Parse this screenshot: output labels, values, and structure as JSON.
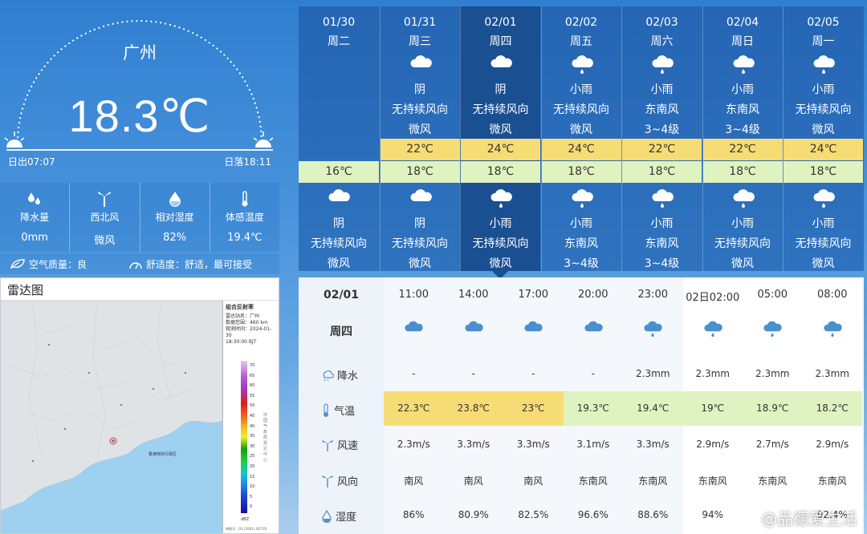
{
  "current": {
    "city": "广州",
    "temperature": "18.3℃",
    "sunrise": "日出07:07",
    "sunset": "日落18:11",
    "stats": [
      {
        "icon": "raindrops-icon",
        "label": "降水量",
        "value": "0mm"
      },
      {
        "icon": "wind-turbine-icon",
        "label": "西北风",
        "value": "微风"
      },
      {
        "icon": "humidity-drop-icon",
        "label": "相对湿度",
        "value": "82%"
      },
      {
        "icon": "thermometer-icon",
        "label": "体感温度",
        "value": "19.4℃"
      }
    ],
    "air_quality": "空气质量：良",
    "comfort": "舒适度：舒适，最可接受"
  },
  "radar": {
    "title": "雷达图",
    "legend_title": "组合反射率",
    "legend_lines": [
      "雷达站名：广州",
      "数据范围：460 km",
      "观测时间：2024-01-30",
      "18:30:00 BJT"
    ],
    "legend_scale": [
      "70",
      "65",
      "60",
      "55",
      "50",
      "45",
      "40",
      "35",
      "30",
      "25",
      "20",
      "15",
      "10",
      "5",
      "0"
    ],
    "legend_unit": "dBZ",
    "legend_side_text": "中国气象局雷达中心",
    "map_label": "审图号：GS (2002) 4073号"
  },
  "daily": [
    {
      "date": "01/30",
      "week": "周二",
      "day_icon": "",
      "day_cond": "",
      "day_wind": "",
      "day_level": "",
      "high": "",
      "low": "16℃",
      "night_icon": "cloudy-icon",
      "night_cond": "阴",
      "night_wind": "无持续风向",
      "night_level": "微风"
    },
    {
      "date": "01/31",
      "week": "周三",
      "day_icon": "cloudy-icon",
      "day_cond": "阴",
      "day_wind": "无持续风向",
      "day_level": "微风",
      "high": "22℃",
      "low": "18℃",
      "night_icon": "cloudy-icon",
      "night_cond": "阴",
      "night_wind": "无持续风向",
      "night_level": "微风"
    },
    {
      "date": "02/01",
      "week": "周四",
      "day_icon": "cloudy-icon",
      "day_cond": "阴",
      "day_wind": "无持续风向",
      "day_level": "微风",
      "high": "24℃",
      "low": "18℃",
      "night_icon": "light-rain-icon",
      "night_cond": "小雨",
      "night_wind": "无持续风向",
      "night_level": "微风"
    },
    {
      "date": "02/02",
      "week": "周五",
      "day_icon": "light-rain-icon",
      "day_cond": "小雨",
      "day_wind": "无持续风向",
      "day_level": "微风",
      "high": "24℃",
      "low": "18℃",
      "night_icon": "light-rain-icon",
      "night_cond": "小雨",
      "night_wind": "东南风",
      "night_level": "3~4级"
    },
    {
      "date": "02/03",
      "week": "周六",
      "day_icon": "light-rain-icon",
      "day_cond": "小雨",
      "day_wind": "东南风",
      "day_level": "3~4级",
      "high": "22℃",
      "low": "18℃",
      "night_icon": "light-rain-icon",
      "night_cond": "小雨",
      "night_wind": "东南风",
      "night_level": "3~4级"
    },
    {
      "date": "02/04",
      "week": "周日",
      "day_icon": "light-rain-icon",
      "day_cond": "小雨",
      "day_wind": "东南风",
      "day_level": "3~4级",
      "high": "22℃",
      "low": "18℃",
      "night_icon": "light-rain-icon",
      "night_cond": "小雨",
      "night_wind": "无持续风向",
      "night_level": "微风"
    },
    {
      "date": "02/05",
      "week": "周一",
      "day_icon": "light-rain-icon",
      "day_cond": "小雨",
      "day_wind": "无持续风向",
      "day_level": "微风",
      "high": "24℃",
      "low": "18℃",
      "night_icon": "light-rain-icon",
      "night_cond": "小雨",
      "night_wind": "无持续风向",
      "night_level": "微风"
    }
  ],
  "hourly": {
    "date": "02/01",
    "week": "周四",
    "row_labels": {
      "precip": "降水",
      "temp": "气温",
      "speed": "风速",
      "dir": "风向",
      "hum": "湿度"
    },
    "hours": [
      {
        "time": "11:00",
        "icon": "cloudy-icon",
        "precip": "-",
        "temp": "22.3℃",
        "speed": "2.3m/s",
        "dir": "南风",
        "hum": "86%"
      },
      {
        "time": "14:00",
        "icon": "cloudy-icon",
        "precip": "-",
        "temp": "23.8℃",
        "speed": "3.3m/s",
        "dir": "南风",
        "hum": "80.9%"
      },
      {
        "time": "17:00",
        "icon": "cloudy-icon",
        "precip": "-",
        "temp": "23℃",
        "speed": "3.3m/s",
        "dir": "南风",
        "hum": "82.5%"
      },
      {
        "time": "20:00",
        "icon": "cloudy-icon",
        "precip": "-",
        "temp": "19.3℃",
        "speed": "3.1m/s",
        "dir": "东南风",
        "hum": "96.6%"
      },
      {
        "time": "23:00",
        "icon": "light-rain-icon",
        "precip": "2.3mm",
        "temp": "19.4℃",
        "speed": "3.3m/s",
        "dir": "东南风",
        "hum": "88.6%"
      },
      {
        "time": "02日02:00",
        "icon": "light-rain-icon",
        "precip": "2.3mm",
        "temp": "19℃",
        "speed": "2.9m/s",
        "dir": "东南风",
        "hum": "94%"
      },
      {
        "time": "05:00",
        "icon": "light-rain-icon",
        "precip": "2.3mm",
        "temp": "18.9℃",
        "speed": "2.7m/s",
        "dir": "东南风",
        "hum": ""
      },
      {
        "time": "08:00",
        "icon": "light-rain-icon",
        "precip": "2.3mm",
        "temp": "18.2℃",
        "speed": "2.9m/s",
        "dir": "东南风",
        "hum": "92.4%"
      }
    ]
  },
  "watermark": "@品德爱生活",
  "colors": {
    "high_bg": "#f6dc74",
    "low_bg": "#dff3c0",
    "selected_col": "#1a4f92"
  }
}
